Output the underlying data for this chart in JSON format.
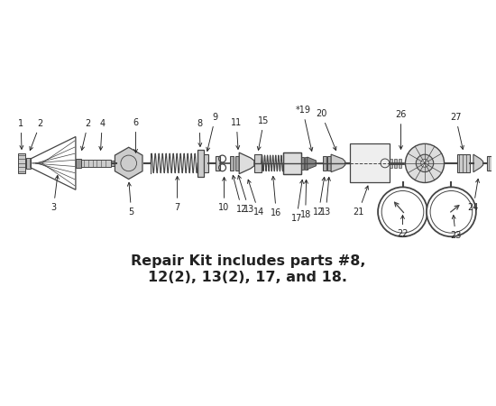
{
  "title": "Repair Kit includes parts #8,\n12(2), 13(2), 17, and 18.",
  "bg_color": "#ffffff",
  "line_color": "#444444",
  "text_color": "#222222",
  "fig_width": 5.5,
  "fig_height": 4.5,
  "dpi": 100
}
